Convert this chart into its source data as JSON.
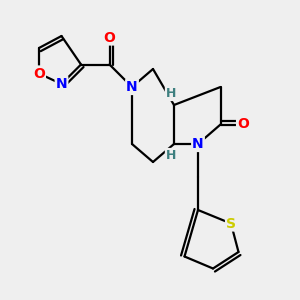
{
  "bg_color": "#efefef",
  "atom_colors": {
    "N": "#0000ff",
    "O": "#ff0000",
    "S": "#cccc00",
    "H_stereo": "#3d7f7f",
    "C": "#000000"
  },
  "bond_color": "#000000",
  "figsize": [
    3.0,
    3.0
  ],
  "dpi": 100
}
